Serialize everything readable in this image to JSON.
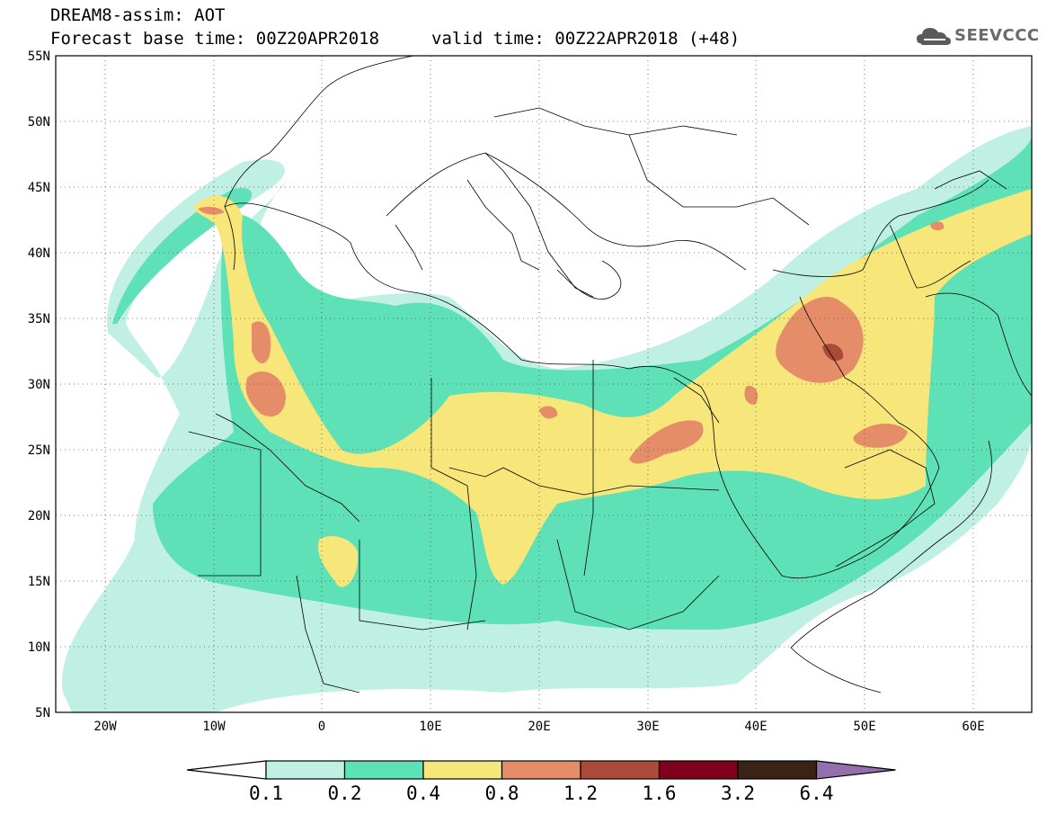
{
  "header": {
    "title": "DREAM8-assim: AOT",
    "base_time": "Forecast base time: 00Z20APR2018",
    "valid_time": "valid time: 00Z22APR2018 (+48)"
  },
  "logo": {
    "text": "SEEVCCC",
    "icon": "cloud-icon"
  },
  "map": {
    "variable": "AOT",
    "lat_labels": [
      "55N",
      "50N",
      "45N",
      "40N",
      "35N",
      "30N",
      "25N",
      "20N",
      "15N",
      "10N",
      "5N"
    ],
    "lon_labels": [
      "20W",
      "10W",
      "0",
      "10E",
      "20E",
      "30E",
      "40E",
      "50E",
      "60E"
    ],
    "lat_range": [
      5,
      55
    ],
    "lon_range": [
      -25,
      65
    ],
    "grid": true
  },
  "colorbar": {
    "labels": [
      "0.1",
      "0.2",
      "0.4",
      "0.8",
      "1.2",
      "1.6",
      "3.2",
      "6.4"
    ],
    "colors": [
      "#ffffff",
      "#c0f0e4",
      "#5fe1b7",
      "#f7e67a",
      "#e58c68",
      "#ac4a3a",
      "#80001e",
      "#3a2315",
      "#9370ab"
    ]
  }
}
